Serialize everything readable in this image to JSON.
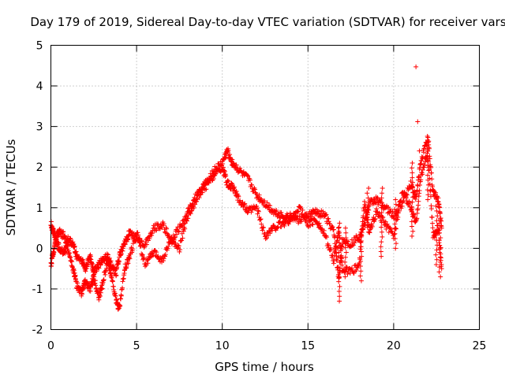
{
  "chart_data": {
    "type": "scatter",
    "title": "Day 179 of 2019, Sidereal Day-to-day VTEC variation (SDTVAR) for receiver vars",
    "xlabel": "GPS time / hours",
    "ylabel": "SDTVAR / TECUs",
    "xlim": [
      0,
      25
    ],
    "ylim": [
      -2,
      5
    ],
    "xticks": [
      "0",
      "5",
      "10",
      "15",
      "20",
      "25"
    ],
    "yticks": [
      "-2",
      "-1",
      "0",
      "1",
      "2",
      "3",
      "4",
      "5"
    ],
    "grid": true,
    "marker": "+",
    "color": "#ff0000",
    "series": [
      {
        "name": "SDTVAR",
        "x": [
          0.0,
          0.15,
          0.3,
          0.5,
          0.8,
          1.0,
          1.3,
          1.5,
          1.8,
          2.0,
          2.3,
          2.5,
          2.8,
          3.0,
          3.3,
          3.5,
          3.8,
          4.0,
          4.3,
          4.6,
          5.0,
          5.5,
          6.0,
          6.5,
          7.0,
          7.5,
          8.0,
          8.5,
          9.0,
          9.5,
          10.0,
          10.3,
          10.6,
          11.0,
          11.5,
          12.0,
          12.5,
          13.0,
          13.5,
          14.0,
          14.5,
          15.0,
          15.5,
          16.0,
          16.5,
          16.8,
          17.0,
          17.5,
          18.0,
          18.3,
          18.6,
          19.0,
          19.5,
          20.0,
          20.5,
          21.0,
          21.3,
          21.6,
          22.0,
          22.3,
          22.6,
          22.8
        ],
        "y": [
          0.6,
          0.4,
          0.2,
          0.0,
          -0.1,
          0.2,
          0.1,
          -0.2,
          -0.3,
          -0.5,
          -0.2,
          -0.6,
          -0.4,
          -0.3,
          -0.2,
          -0.4,
          -0.6,
          -0.2,
          0.1,
          0.4,
          0.2,
          0.1,
          0.5,
          0.6,
          0.2,
          0.5,
          0.8,
          1.2,
          1.6,
          1.9,
          2.1,
          2.4,
          2.1,
          1.9,
          1.7,
          1.3,
          1.1,
          0.9,
          0.8,
          0.8,
          0.7,
          0.8,
          0.9,
          0.8,
          0.4,
          -0.8,
          0.2,
          0.1,
          0.3,
          0.6,
          1.1,
          1.2,
          1.0,
          0.8,
          1.1,
          1.6,
          1.2,
          2.2,
          2.7,
          1.4,
          1.2,
          0.5
        ],
        "y2": [
          -0.4,
          -0.1,
          0.3,
          0.4,
          0.3,
          0.0,
          -0.5,
          -0.9,
          -1.1,
          -0.8,
          -1.0,
          -0.7,
          -1.2,
          -0.9,
          -0.3,
          -0.6,
          -1.3,
          -1.5,
          -0.5,
          -0.2,
          0.4,
          -0.4,
          -0.1,
          -0.3,
          0.2,
          0.0,
          0.9,
          1.3,
          1.5,
          1.8,
          2.0,
          1.6,
          1.5,
          1.2,
          0.9,
          1.0,
          0.3,
          0.5,
          0.6,
          0.7,
          1.0,
          0.6,
          0.7,
          0.3,
          -0.3,
          0.5,
          -0.5,
          -0.6,
          -0.4,
          1.2,
          0.4,
          0.9,
          0.6,
          0.3,
          1.4,
          1.0,
          0.6,
          1.8,
          2.4,
          0.3,
          0.5,
          -0.5
        ]
      }
    ],
    "outliers": {
      "x": [
        21.3,
        21.4,
        21.5
      ],
      "y": [
        4.47,
        3.12,
        2.4
      ]
    }
  }
}
